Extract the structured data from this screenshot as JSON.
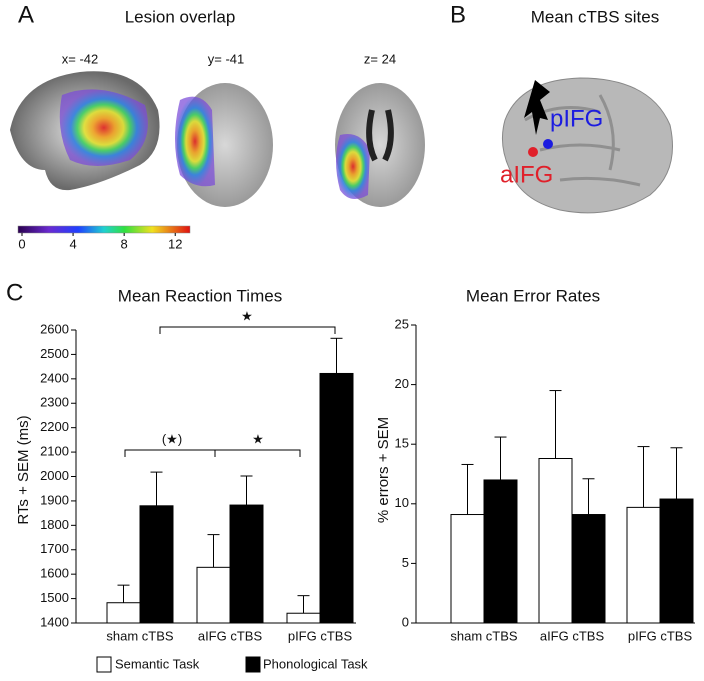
{
  "panel_a": {
    "label": "A",
    "title": "Lesion overlap",
    "slices": [
      "x= -42",
      "y= -41",
      "z= 24"
    ],
    "colorbar": {
      "lim": [
        0,
        13
      ],
      "ticks": [
        0,
        4,
        8,
        12
      ]
    }
  },
  "panel_b": {
    "label": "B",
    "title": "Mean cTBS sites",
    "sites": [
      {
        "name": "pIFG",
        "color": "#1c1ce0"
      },
      {
        "name": "aIFG",
        "color": "#e0202a"
      }
    ]
  },
  "panel_c": {
    "label": "C"
  },
  "chart_data": [
    {
      "type": "bar",
      "title": "Mean Reaction Times",
      "y_label": "RTs + SEM (ms)",
      "categories": [
        "sham cTBS",
        "aIFG cTBS",
        "pIFG cTBS"
      ],
      "series": [
        {
          "name": "Semantic Task",
          "color": "#ffffff",
          "values": [
            1483,
            1628,
            1440
          ],
          "errors": [
            72,
            134,
            72
          ]
        },
        {
          "name": "Phonological Task",
          "color": "#000000",
          "values": [
            1880,
            1883,
            2422
          ],
          "errors": [
            138,
            119,
            144
          ]
        }
      ],
      "ylim": [
        1400,
        2600
      ],
      "yticks": [
        1400,
        1500,
        1600,
        1700,
        1800,
        1900,
        2000,
        2100,
        2200,
        2300,
        2400,
        2500,
        2600
      ],
      "annotations": [
        {
          "text": "★"
        },
        {
          "text": "(★)"
        },
        {
          "text": "★"
        }
      ]
    },
    {
      "type": "bar",
      "title": "Mean Error Rates",
      "y_label": "% errors + SEM",
      "categories": [
        "sham cTBS",
        "aIFG cTBS",
        "pIFG cTBS"
      ],
      "series": [
        {
          "color": "#ffffff",
          "values": [
            9.1,
            13.8,
            9.7
          ],
          "errors": [
            4.2,
            5.7,
            5.1
          ]
        },
        {
          "color": "#000000",
          "values": [
            12.0,
            9.1,
            10.4
          ],
          "errors": [
            3.6,
            3.0,
            4.3
          ]
        }
      ],
      "ylim": [
        0,
        25
      ],
      "yticks": [
        0,
        5,
        10,
        15,
        20,
        25
      ]
    }
  ]
}
